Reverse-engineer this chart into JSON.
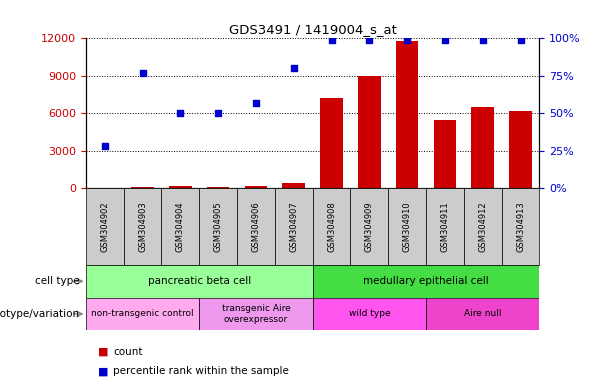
{
  "title": "GDS3491 / 1419004_s_at",
  "samples": [
    "GSM304902",
    "GSM304903",
    "GSM304904",
    "GSM304905",
    "GSM304906",
    "GSM304907",
    "GSM304908",
    "GSM304909",
    "GSM304910",
    "GSM304911",
    "GSM304912",
    "GSM304913"
  ],
  "counts": [
    50,
    80,
    200,
    100,
    200,
    400,
    7200,
    9000,
    11800,
    5500,
    6500,
    6200
  ],
  "percentile_ranks": [
    28,
    77,
    50,
    50,
    57,
    80,
    99,
    99,
    99,
    99,
    99,
    99
  ],
  "bar_color": "#cc0000",
  "dot_color": "#0000cc",
  "ylim_left": [
    0,
    12000
  ],
  "ylim_right": [
    0,
    100
  ],
  "yticks_left": [
    0,
    3000,
    6000,
    9000,
    12000
  ],
  "yticks_right": [
    0,
    25,
    50,
    75,
    100
  ],
  "cell_type_groups": [
    {
      "label": "pancreatic beta cell",
      "start": 0,
      "end": 6,
      "color": "#99ff99"
    },
    {
      "label": "medullary epithelial cell",
      "start": 6,
      "end": 12,
      "color": "#44dd44"
    }
  ],
  "genotype_groups": [
    {
      "label": "non-transgenic control",
      "start": 0,
      "end": 3,
      "color": "#ffaaee"
    },
    {
      "label": "transgenic Aire\noverexpressor",
      "start": 3,
      "end": 6,
      "color": "#ee99ee"
    },
    {
      "label": "wild type",
      "start": 6,
      "end": 9,
      "color": "#ff55ee"
    },
    {
      "label": "Aire null",
      "start": 9,
      "end": 12,
      "color": "#ee44cc"
    }
  ],
  "background_color": "#ffffff",
  "tick_label_color_left": "#cc0000",
  "tick_label_color_right": "#0000cc",
  "row_label_cell_type": "cell type",
  "row_label_genotype": "genotype/variation",
  "legend_count_label": "count",
  "legend_percentile_label": "percentile rank within the sample",
  "sample_box_color": "#cccccc"
}
